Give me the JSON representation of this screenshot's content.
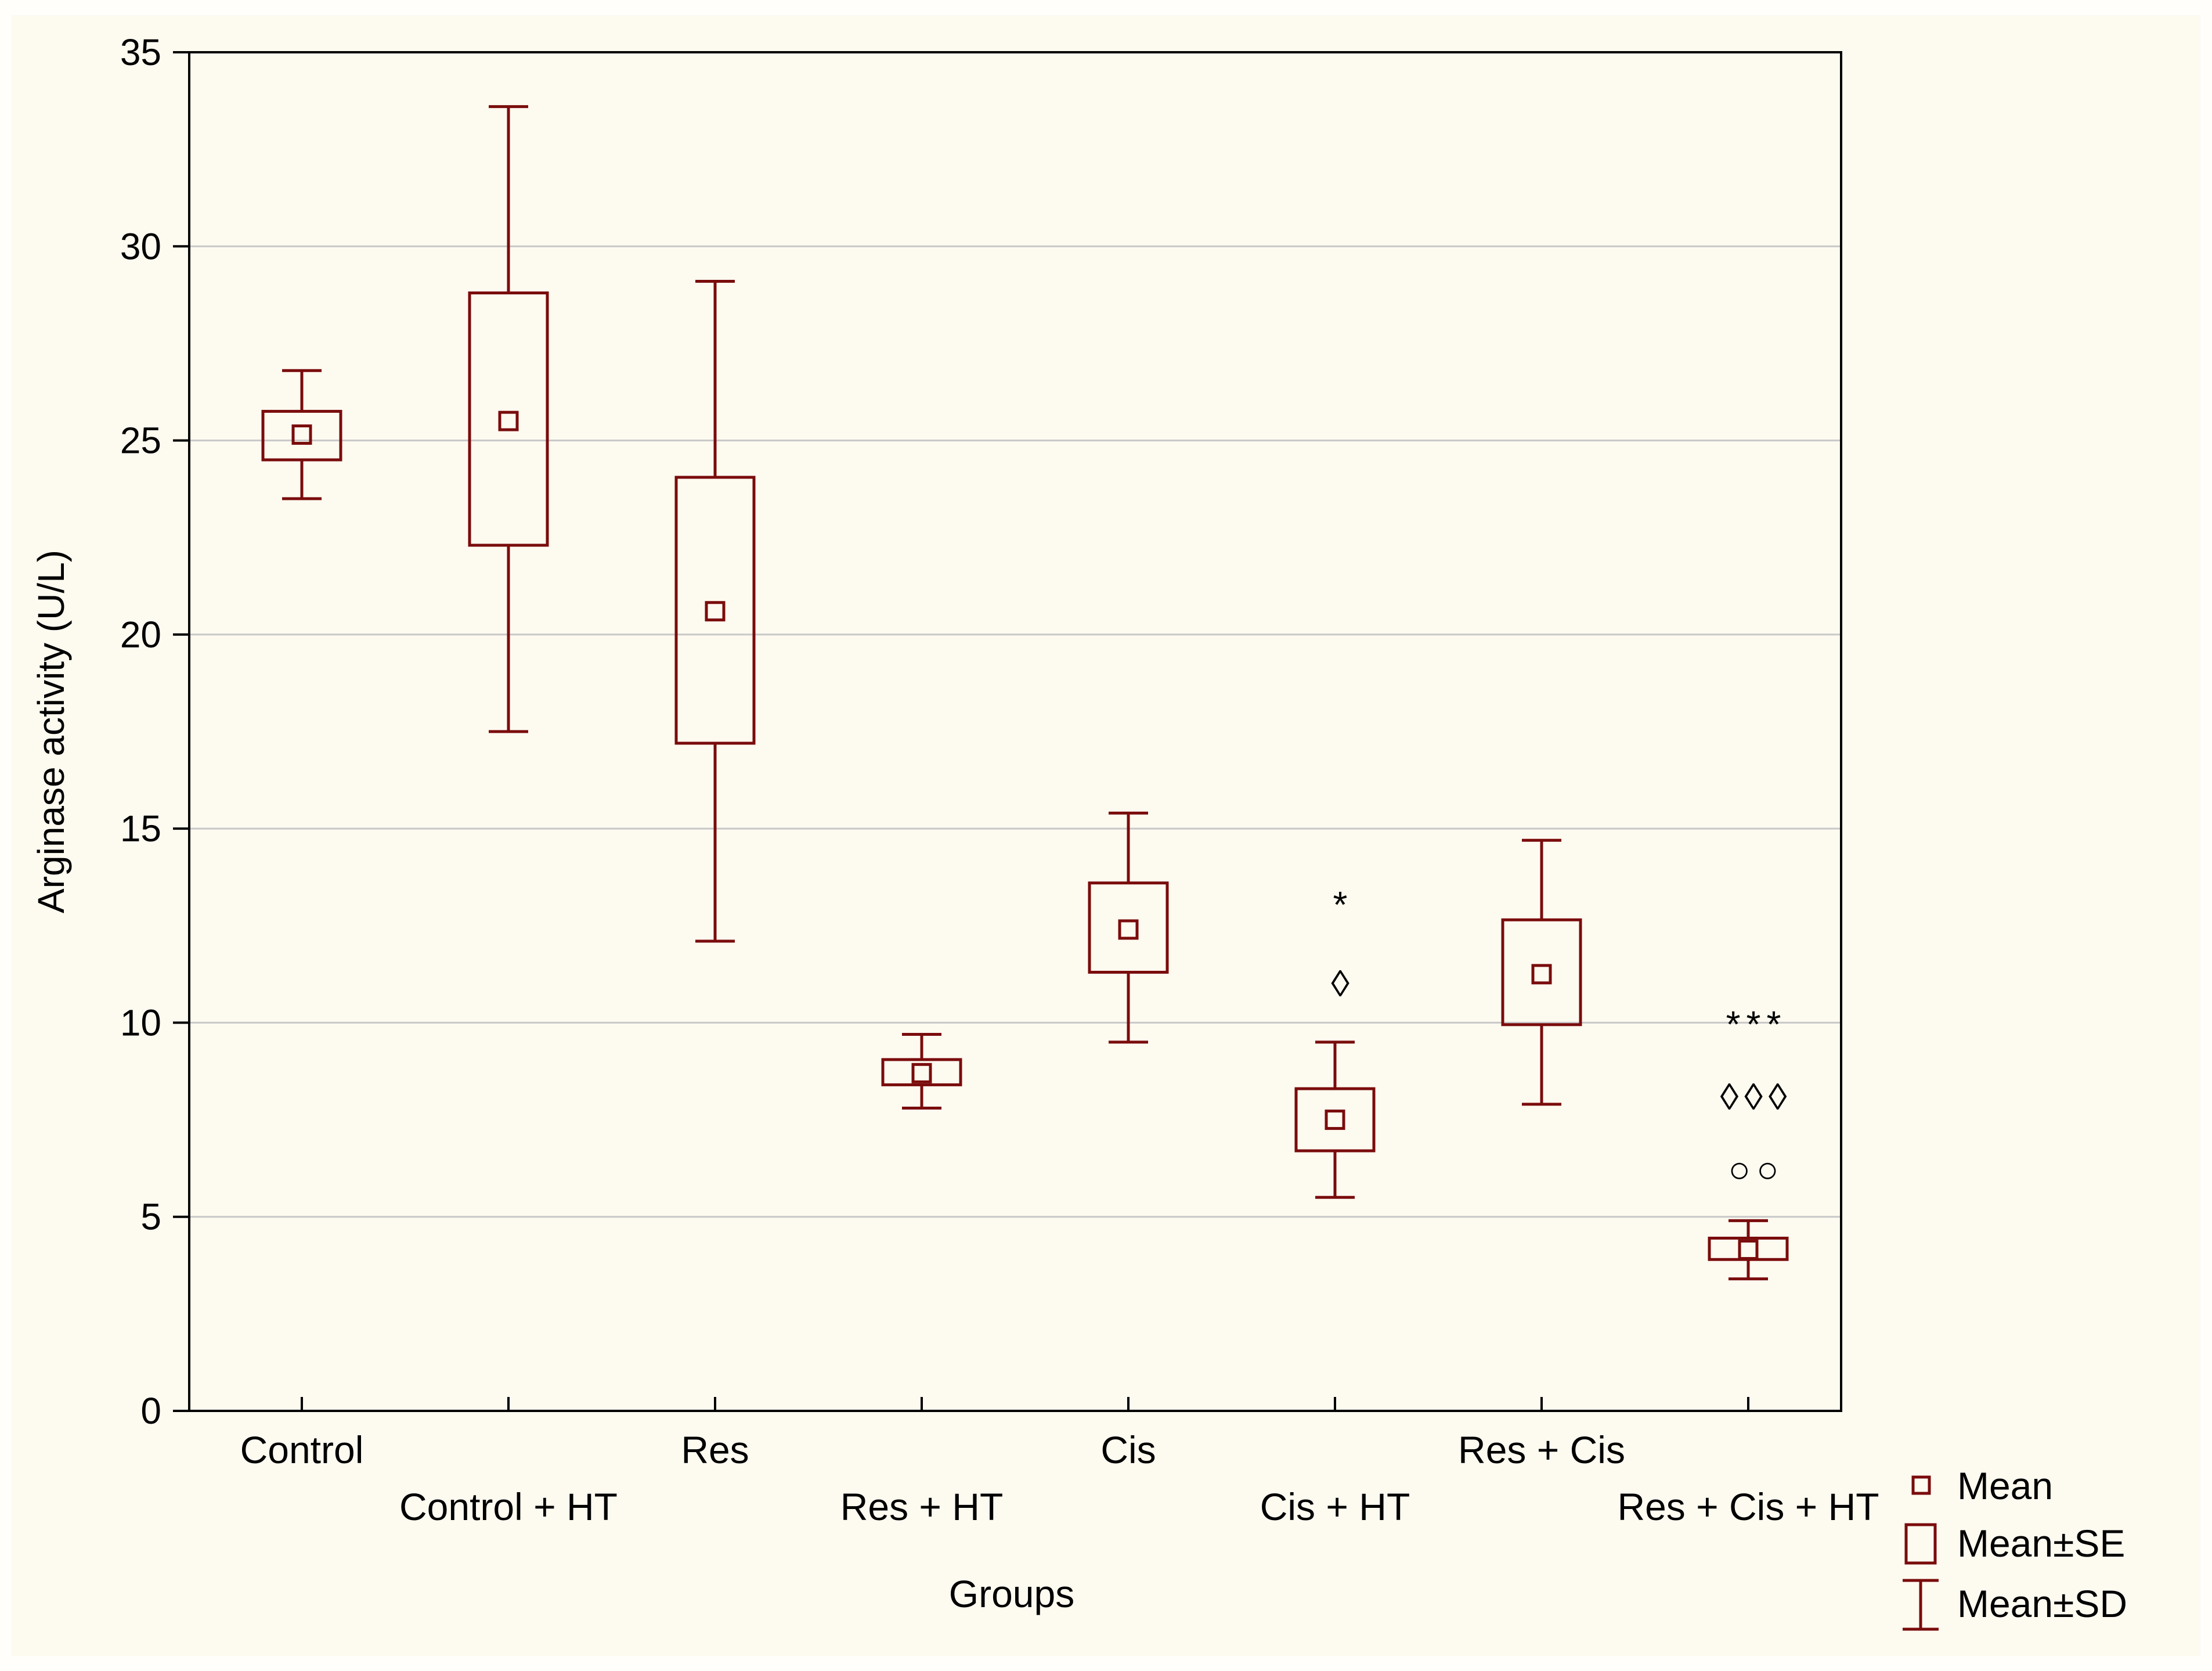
{
  "chart_data": {
    "type": "box",
    "xlabel": "Groups",
    "ylabel": "Arginase activity (U/L)",
    "ylim": [
      0,
      35
    ],
    "yticks": [
      0,
      5,
      10,
      15,
      20,
      25,
      30,
      35
    ],
    "grid": true,
    "colors": {
      "series": "#7a0c0c",
      "grid": "#c8c8c8",
      "axis": "#000000"
    },
    "groups": [
      {
        "name": "Control",
        "mean": 25.15,
        "se_low": 24.5,
        "se_high": 25.75,
        "sd_low": 23.5,
        "sd_high": 26.8,
        "annotations": []
      },
      {
        "name": "Control + HT",
        "mean": 25.5,
        "se_low": 22.3,
        "se_high": 28.8,
        "sd_low": 17.5,
        "sd_high": 33.6,
        "annotations": []
      },
      {
        "name": "Res",
        "mean": 20.6,
        "se_low": 17.2,
        "se_high": 24.05,
        "sd_low": 12.1,
        "sd_high": 29.1,
        "annotations": []
      },
      {
        "name": "Res + HT",
        "mean": 8.7,
        "se_low": 8.4,
        "se_high": 9.05,
        "sd_low": 7.8,
        "sd_high": 9.7,
        "annotations": []
      },
      {
        "name": "Cis",
        "mean": 12.4,
        "se_low": 11.3,
        "se_high": 13.6,
        "sd_low": 9.5,
        "sd_high": 15.4,
        "annotations": []
      },
      {
        "name": "Cis + HT",
        "mean": 7.5,
        "se_low": 6.7,
        "se_high": 8.3,
        "sd_low": 5.5,
        "sd_high": 9.5,
        "annotations": [
          "*",
          "◊"
        ]
      },
      {
        "name": "Res + Cis",
        "mean": 11.25,
        "se_low": 9.95,
        "se_high": 12.65,
        "sd_low": 7.9,
        "sd_high": 14.7,
        "annotations": []
      },
      {
        "name": "Res + Cis + HT",
        "mean": 4.15,
        "se_low": 3.9,
        "se_high": 4.45,
        "sd_low": 3.4,
        "sd_high": 4.9,
        "annotations": [
          "***",
          "◊◊◊",
          "○○"
        ]
      }
    ],
    "legend": {
      "position": "bottom-right",
      "items": [
        {
          "symbol": "mean-square",
          "label": "Mean"
        },
        {
          "symbol": "se-box",
          "label": "Mean±SE"
        },
        {
          "symbol": "sd-whisker",
          "label": "Mean±SD"
        }
      ]
    }
  }
}
